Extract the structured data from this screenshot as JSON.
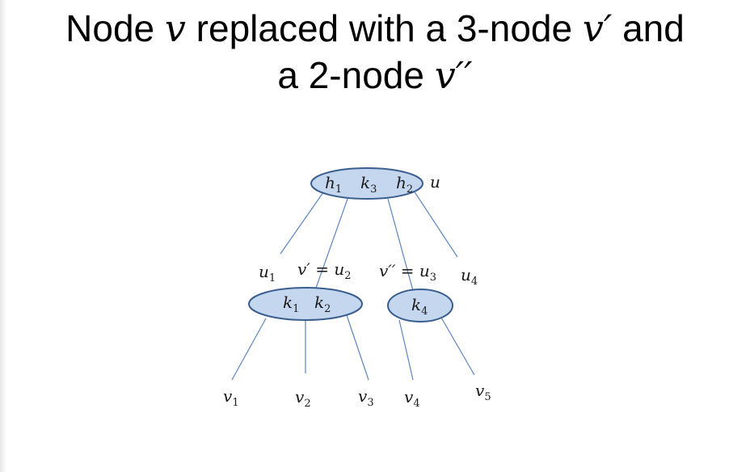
{
  "title": {
    "line1_pre": "Node ",
    "v": "v",
    "line1_mid": " replaced with a 3-node ",
    "v_prime": "v′",
    "line1_post": " and",
    "line2_pre": "a 2-node ",
    "v_dprime": "v′′"
  },
  "colors": {
    "node_fill": "#c5d6ef",
    "node_stroke": "#3a5f8f",
    "edge": "#5b86c0"
  },
  "parent": {
    "keys": [
      "h1",
      "k3",
      "h2"
    ],
    "name": "u"
  },
  "labels": {
    "u1": "u1",
    "v_prime_eq_u2": "v′ = u2",
    "v_dprime_eq_u3": "v′′ = u3",
    "u4": "u4"
  },
  "v_prime_node": {
    "keys": [
      "k1",
      "k2"
    ]
  },
  "v_dprime_node": {
    "keys": [
      "k4"
    ]
  },
  "leaves": [
    "v1",
    "v2",
    "v3",
    "v4",
    "v5"
  ]
}
